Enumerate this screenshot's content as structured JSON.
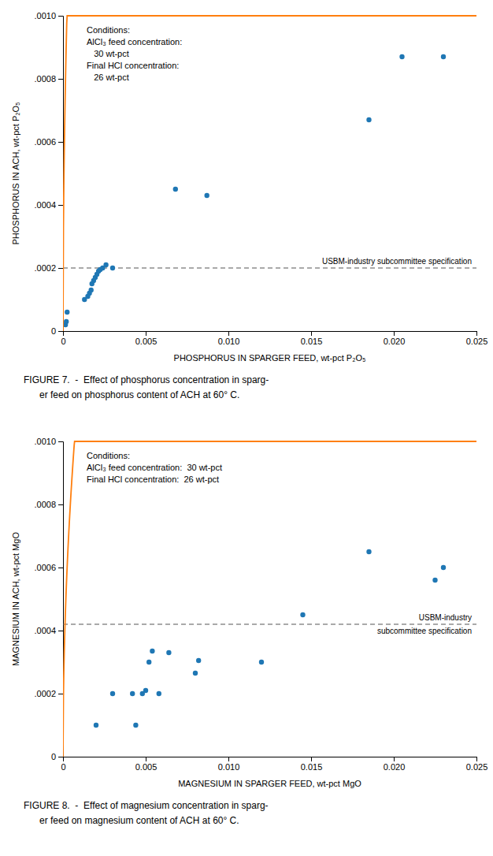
{
  "chart_data": [
    {
      "type": "scatter",
      "title": [
        "FIGURE 7.  -  Effect of phosphorus concentration in sparg-",
        "      er feed on phosphorus content of ACH at 60° C."
      ],
      "xlabel": "PHOSPHORUS IN SPARGER FEED, wt-pct P₂O₅",
      "ylabel": "PHOSPHORUS IN ACH, wt-pct P₂O₅",
      "xlim": [
        0,
        0.025
      ],
      "ylim": [
        0,
        0.001
      ],
      "xticks": [
        0,
        0.005,
        {
          "value": 0.01,
          "label": "0.010"
        },
        0.015,
        {
          "value": 0.02,
          "label": "0.020"
        },
        0.025
      ],
      "yticks": [
        0,
        {
          "value": 0.0002,
          "label": ".0002"
        },
        {
          "value": 0.0004,
          "label": ".0004"
        },
        {
          "value": 0.0006,
          "label": ".0006"
        },
        {
          "value": 0.0008,
          "label": ".0008"
        },
        {
          "value": 0.001,
          "label": ".0010"
        }
      ],
      "series": [
        {
          "type": "scatter",
          "marker": "circle",
          "x": [
            0.00015,
            0.0002,
            0.00025,
            0.0013,
            0.0015,
            0.0016,
            0.0017,
            0.00175,
            0.00185,
            0.00195,
            0.00205,
            0.00215,
            0.00225,
            0.0024,
            0.0026,
            0.003,
            0.0068,
            0.0087,
            0.0185,
            0.0205,
            0.023
          ],
          "values": [
            2e-05,
            3e-05,
            6e-05,
            0.0001,
            0.00011,
            0.00012,
            0.00013,
            0.00015,
            0.00016,
            0.00017,
            0.00018,
            0.00019,
            0.000195,
            0.0002,
            0.00021,
            0.0002,
            0.00045,
            0.00043,
            0.00067,
            0.00087,
            0.00087
          ]
        },
        {
          "type": "line",
          "line_style": "solid",
          "x": [
            0,
            2.5025e-05,
            5.005e-05,
            7.5075e-05,
            0.0001001,
            0.000125125,
            0.00015015,
            0.000175175,
            0.0002002,
            0.000225225,
            0.00025025,
            0.025
          ],
          "values": [
            0,
            0.00032516,
            0.00045984,
            0.00056319,
            0.00065032,
            0.00072708,
            0.00079648,
            0.00086029,
            0.0009197,
            0.00097548,
            0.001,
            0.001
          ]
        }
      ],
      "spec_line": {
        "y": 0.0002,
        "line_style": "dashed",
        "label": [
          "USBM-industry subcommittee specification"
        ]
      },
      "annotations": [
        "Conditions:",
        "AlCl₃ feed concentration:",
        "   30 wt-pct",
        "Final HCl concentration:",
        "   26 wt-pct"
      ]
    },
    {
      "type": "scatter",
      "title": [
        "FIGURE 8.  -  Effect of magnesium concentration in sparg-",
        "      er feed on magnesium content of ACH at 60° C."
      ],
      "xlabel": "MAGNESIUM IN SPARGER FEED, wt-pct MgO",
      "ylabel": "MAGNESIUM IN ACH, wt-pct MgO",
      "xlim": [
        0,
        0.025
      ],
      "ylim": [
        0,
        0.001
      ],
      "xticks": [
        0,
        0.005,
        {
          "value": 0.01,
          "label": "0.010"
        },
        0.015,
        {
          "value": 0.02,
          "label": "0.020"
        },
        0.025
      ],
      "yticks": [
        0,
        {
          "value": 0.0002,
          "label": ".0002"
        },
        {
          "value": 0.0004,
          "label": ".0004"
        },
        {
          "value": 0.0006,
          "label": ".0006"
        },
        {
          "value": 0.0008,
          "label": ".0008"
        },
        {
          "value": 0.001,
          "label": ".0010"
        }
      ],
      "series": [
        {
          "type": "scatter",
          "marker": "circle",
          "x": [
            0.002,
            0.003,
            0.0042,
            0.0044,
            0.0048,
            0.005,
            0.0052,
            0.0054,
            0.0058,
            0.0064,
            0.008,
            0.0082,
            0.012,
            0.0145,
            0.0185,
            0.0225,
            0.023
          ],
          "values": [
            0.0001,
            0.0002,
            0.0002,
            0.0001,
            0.0002,
            0.00021,
            0.0003,
            0.000335,
            0.0002,
            0.00033,
            0.000265,
            0.000305,
            0.0003,
            0.00045,
            0.00065,
            0.00056,
            0.0006
          ]
        },
        {
          "type": "line",
          "line_style": "solid",
          "x": [
            0,
            2.5025e-05,
            5.005e-05,
            7.5075e-05,
            0.0001001,
            0.000125125,
            0.00015015,
            0.000175175,
            0.0002002,
            0.000225225,
            0.00025025,
            0.000275275,
            0.0003003,
            0.000325325,
            0.00035035,
            0.000375375,
            0.0004004,
            0.000425425,
            0.00045045,
            0.000475475,
            0.0005005,
            0.000525526,
            0.000550551,
            0.000575576,
            0.000600601,
            0.000625626,
            0.000650651,
            0.000675676,
            0.000700701,
            0.025
          ],
          "values": [
            0,
            0.0001901,
            0.00026884,
            0.00032926,
            0.0003802,
            0.00042508,
            0.00046565,
            0.00050296,
            0.00053768,
            0.0005703,
            0.00060115,
            0.00063049,
            0.00065853,
            0.00068542,
            0.00071129,
            0.00073625,
            0.0007604,
            0.0007838,
            0.00080652,
            0.00082863,
            0.00085015,
            0.00087115,
            0.00089165,
            0.00091169,
            0.0009313,
            0.0009505,
            0.00096932,
            0.00098779,
            0.001,
            0.001
          ]
        }
      ],
      "spec_line": {
        "y": 0.00042,
        "line_style": "dashed",
        "label": [
          "USBM-industry",
          "subcommittee specification"
        ]
      },
      "annotations": [
        "Conditions:",
        "AlCl₃ feed concentration:  30 wt-pct",
        "Final HCl concentration:  26 wt-pct"
      ]
    }
  ]
}
